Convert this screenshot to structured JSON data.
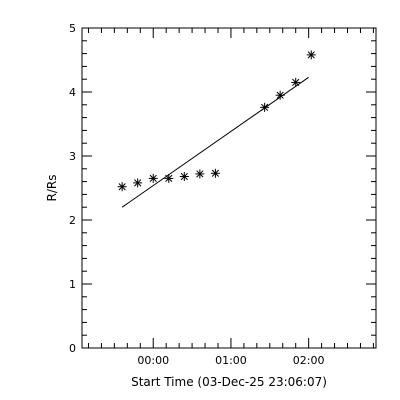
{
  "chart_data": {
    "type": "scatter",
    "title": "",
    "xlabel": "Start Time (03-Dec-25 23:06:07)",
    "ylabel": "R/Rs",
    "xlim": [
      -55,
      172
    ],
    "ylim": [
      0,
      5
    ],
    "x_ticks": [
      {
        "value": 0,
        "label": "00:00"
      },
      {
        "value": 60,
        "label": "01:00"
      },
      {
        "value": 120,
        "label": "02:00"
      }
    ],
    "y_ticks": [
      {
        "value": 0,
        "label": "0"
      },
      {
        "value": 1,
        "label": "1"
      },
      {
        "value": 2,
        "label": "2"
      },
      {
        "value": 3,
        "label": "3"
      },
      {
        "value": 4,
        "label": "4"
      },
      {
        "value": 5,
        "label": "5"
      }
    ],
    "points": [
      {
        "x": -24,
        "y": 2.52
      },
      {
        "x": -12,
        "y": 2.58
      },
      {
        "x": 0,
        "y": 2.65
      },
      {
        "x": 12,
        "y": 2.65
      },
      {
        "x": 24,
        "y": 2.68
      },
      {
        "x": 36,
        "y": 2.72
      },
      {
        "x": 48,
        "y": 2.73
      },
      {
        "x": 86,
        "y": 3.76
      },
      {
        "x": 98,
        "y": 3.95
      },
      {
        "x": 110,
        "y": 4.15
      },
      {
        "x": 122,
        "y": 4.58
      }
    ],
    "fit_line": {
      "x": [
        -24,
        120
      ],
      "y": [
        2.2,
        4.23
      ]
    }
  }
}
